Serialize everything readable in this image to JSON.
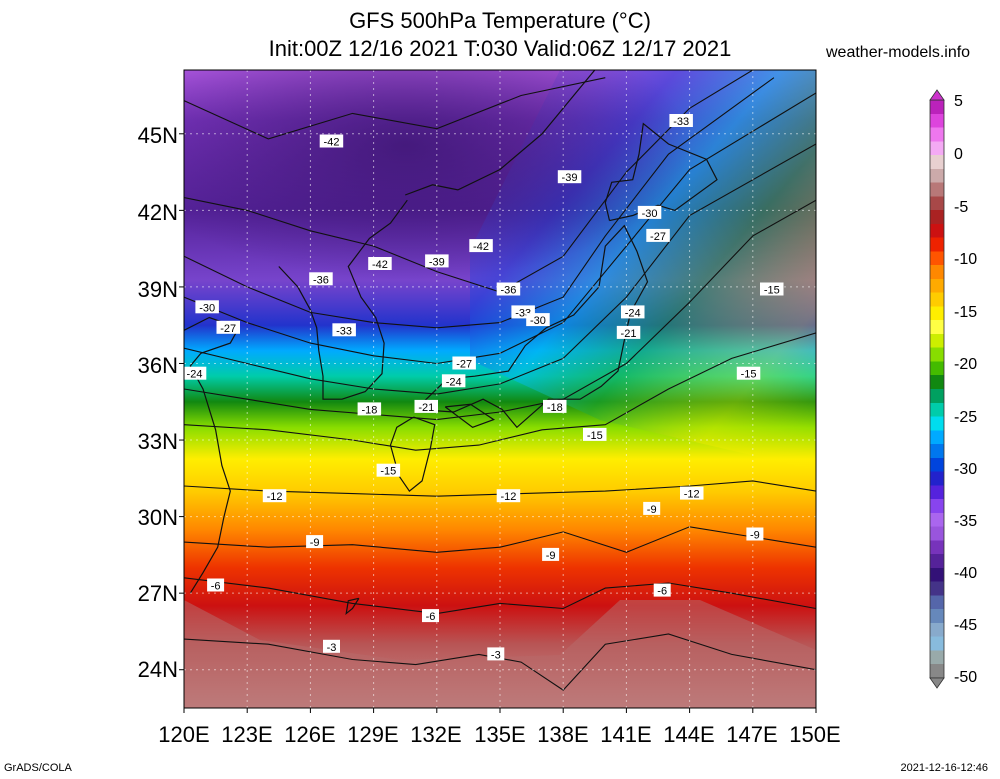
{
  "header": {
    "title_line1": "GFS 500hPa Temperature (°C)",
    "title_line2": "Init:00Z 12/16 2021 T:030 Valid:06Z 12/17 2021",
    "source": "weather-models.info"
  },
  "map": {
    "region_lon": [
      120,
      150
    ],
    "region_lat": [
      22.5,
      47.5
    ],
    "lat_labels": [
      "45N",
      "42N",
      "39N",
      "36N",
      "33N",
      "30N",
      "27N",
      "24N"
    ],
    "lon_labels": [
      "120E",
      "123E",
      "126E",
      "129E",
      "132E",
      "135E",
      "138E",
      "141E",
      "144E",
      "147E",
      "150E"
    ],
    "contour_labels": [
      {
        "text": "-42",
        "lon": 127.0,
        "lat": 44.7
      },
      {
        "text": "-33",
        "lon": 143.6,
        "lat": 45.5
      },
      {
        "text": "-39",
        "lon": 138.3,
        "lat": 43.3
      },
      {
        "text": "-30",
        "lon": 142.1,
        "lat": 41.9
      },
      {
        "text": "-27",
        "lon": 142.5,
        "lat": 41.0
      },
      {
        "text": "-42",
        "lon": 134.1,
        "lat": 40.6
      },
      {
        "text": "-39",
        "lon": 132.0,
        "lat": 40.0
      },
      {
        "text": "-42",
        "lon": 129.3,
        "lat": 39.9
      },
      {
        "text": "-36",
        "lon": 126.5,
        "lat": 39.3
      },
      {
        "text": "-36",
        "lon": 135.4,
        "lat": 38.9
      },
      {
        "text": "-30",
        "lon": 121.1,
        "lat": 38.2
      },
      {
        "text": "-33",
        "lon": 136.1,
        "lat": 38.0
      },
      {
        "text": "-30",
        "lon": 136.8,
        "lat": 37.7
      },
      {
        "text": "-24",
        "lon": 141.3,
        "lat": 38.0
      },
      {
        "text": "-27",
        "lon": 122.1,
        "lat": 37.4
      },
      {
        "text": "-33",
        "lon": 127.6,
        "lat": 37.3
      },
      {
        "text": "-21",
        "lon": 141.1,
        "lat": 37.2
      },
      {
        "text": "-15",
        "lon": 147.9,
        "lat": 38.9
      },
      {
        "text": "-27",
        "lon": 133.3,
        "lat": 36.0
      },
      {
        "text": "-24",
        "lon": 120.5,
        "lat": 35.6
      },
      {
        "text": "-15",
        "lon": 146.8,
        "lat": 35.6
      },
      {
        "text": "-24",
        "lon": 132.8,
        "lat": 35.3
      },
      {
        "text": "-18",
        "lon": 128.8,
        "lat": 34.2
      },
      {
        "text": "-21",
        "lon": 131.5,
        "lat": 34.3
      },
      {
        "text": "-18",
        "lon": 137.6,
        "lat": 34.3
      },
      {
        "text": "-15",
        "lon": 139.5,
        "lat": 33.2
      },
      {
        "text": "-15",
        "lon": 129.7,
        "lat": 31.8
      },
      {
        "text": "-12",
        "lon": 124.3,
        "lat": 30.8
      },
      {
        "text": "-12",
        "lon": 135.4,
        "lat": 30.8
      },
      {
        "text": "-12",
        "lon": 144.1,
        "lat": 30.9
      },
      {
        "text": "-9",
        "lon": 142.2,
        "lat": 30.3
      },
      {
        "text": "-9",
        "lon": 126.2,
        "lat": 29.0
      },
      {
        "text": "-9",
        "lon": 147.1,
        "lat": 29.3
      },
      {
        "text": "-9",
        "lon": 137.4,
        "lat": 28.5
      },
      {
        "text": "-6",
        "lon": 121.5,
        "lat": 27.3
      },
      {
        "text": "-6",
        "lon": 142.7,
        "lat": 27.1
      },
      {
        "text": "-6",
        "lon": 131.7,
        "lat": 26.1
      },
      {
        "text": "-3",
        "lon": 127.0,
        "lat": 24.9
      },
      {
        "text": "-3",
        "lon": 134.8,
        "lat": 24.6
      }
    ]
  },
  "colorbar": {
    "labels": [
      "5",
      "0",
      "-5",
      "-10",
      "-15",
      "-20",
      "-25",
      "-30",
      "-35",
      "-40",
      "-45",
      "-50"
    ],
    "units": "°C",
    "colors": [
      "#bb22bb",
      "#dd44dd",
      "#ee77ee",
      "#f4aaf4",
      "#e8d0d0",
      "#ccaaaa",
      "#b87878",
      "#a84848",
      "#aa2222",
      "#cc1111",
      "#ee2200",
      "#ff5500",
      "#ff8800",
      "#ffaa00",
      "#ffcc00",
      "#ffee00",
      "#ffff44",
      "#ccee00",
      "#88dd00",
      "#44bb00",
      "#118811",
      "#00a060",
      "#00ccaa",
      "#00ddee",
      "#00aaff",
      "#0077ee",
      "#0044dd",
      "#2222cc",
      "#5522dd",
      "#8844ee",
      "#aa66ee",
      "#9955dd",
      "#7733bb",
      "#552299",
      "#331177",
      "#443388",
      "#5566aa",
      "#6688bb",
      "#88aacc",
      "#88bbdd",
      "#99aaaa",
      "#888888"
    ]
  },
  "footer": {
    "left": "GrADS/COLA",
    "right": "2021-12-16-12:46"
  }
}
